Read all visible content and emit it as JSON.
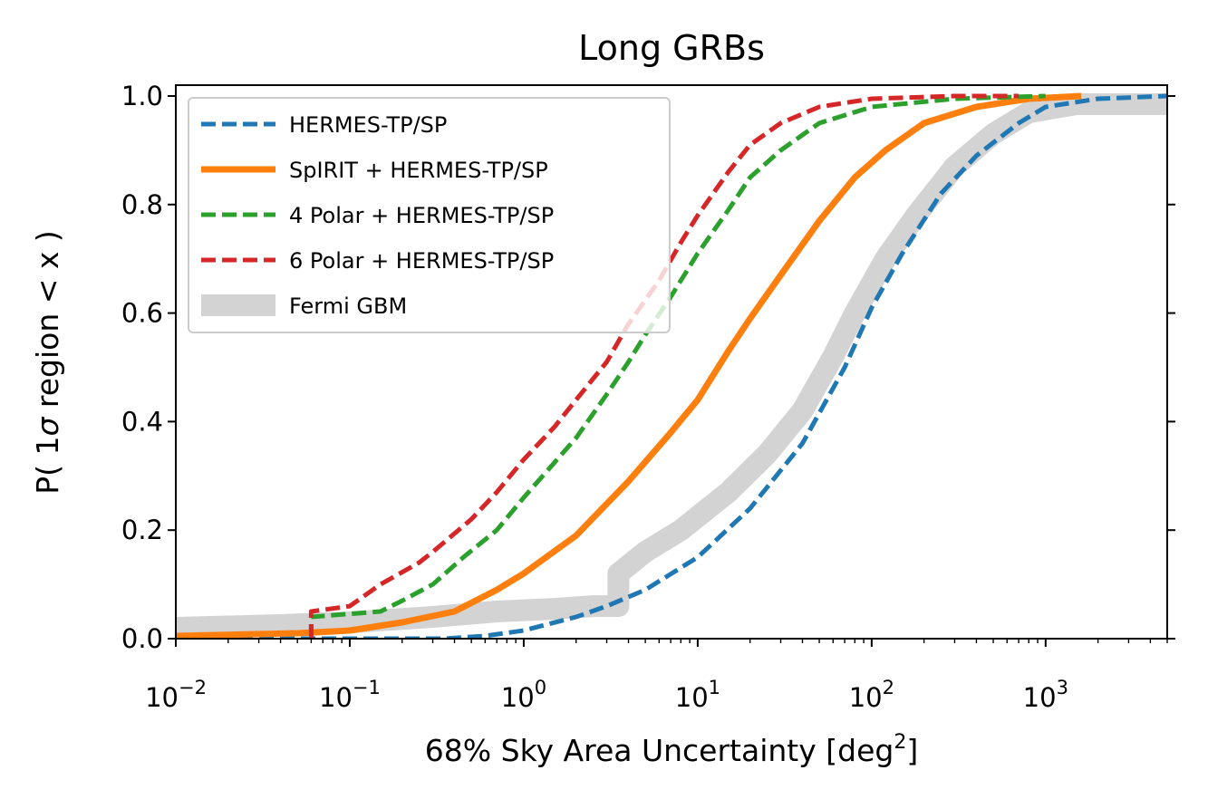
{
  "chart_data": {
    "type": "line",
    "title": "Long GRBs",
    "xlabel": {
      "main": "68% Sky Area Uncertainty [deg",
      "sup": "2",
      "close": "]"
    },
    "ylabel": {
      "pre": "P( 1",
      "sigma": "σ",
      "post": " region < x )"
    },
    "xscale": "log",
    "xlim": [
      0.01,
      5000
    ],
    "ylim": [
      0.0,
      1.02
    ],
    "x_ticks": [
      {
        "base": "10",
        "exp": "−2",
        "value": 0.01
      },
      {
        "base": "10",
        "exp": "−1",
        "value": 0.1
      },
      {
        "base": "10",
        "exp": "0",
        "value": 1
      },
      {
        "base": "10",
        "exp": "1",
        "value": 10
      },
      {
        "base": "10",
        "exp": "2",
        "value": 100
      },
      {
        "base": "10",
        "exp": "3",
        "value": 1000
      }
    ],
    "y_ticks": [
      "0.0",
      "0.2",
      "0.4",
      "0.6",
      "0.8",
      "1.0"
    ],
    "legend_position": "upper-left",
    "series": [
      {
        "name": "Fermi GBM",
        "color": "#d3d3d3",
        "style": "solid-thick",
        "points": [
          [
            0.01,
            0.02
          ],
          [
            0.04,
            0.025
          ],
          [
            0.1,
            0.03
          ],
          [
            0.3,
            0.04
          ],
          [
            0.7,
            0.05
          ],
          [
            1.5,
            0.055
          ],
          [
            2.5,
            0.06
          ],
          [
            3.5,
            0.06
          ],
          [
            3.5,
            0.12
          ],
          [
            5,
            0.16
          ],
          [
            8,
            0.2
          ],
          [
            15,
            0.27
          ],
          [
            25,
            0.34
          ],
          [
            40,
            0.42
          ],
          [
            60,
            0.52
          ],
          [
            80,
            0.6
          ],
          [
            120,
            0.7
          ],
          [
            180,
            0.78
          ],
          [
            300,
            0.87
          ],
          [
            500,
            0.93
          ],
          [
            800,
            0.97
          ],
          [
            1500,
            0.985
          ],
          [
            5000,
            0.985
          ]
        ]
      },
      {
        "name": "HERMES-TP/SP",
        "color": "#1f77b4",
        "style": "dashed",
        "points": [
          [
            0.01,
            0.0
          ],
          [
            0.35,
            0.0
          ],
          [
            0.6,
            0.005
          ],
          [
            1.0,
            0.015
          ],
          [
            2.0,
            0.04
          ],
          [
            3.0,
            0.06
          ],
          [
            5.0,
            0.09
          ],
          [
            10.0,
            0.15
          ],
          [
            20.0,
            0.24
          ],
          [
            40.0,
            0.36
          ],
          [
            70.0,
            0.5
          ],
          [
            100.0,
            0.61
          ],
          [
            150.0,
            0.71
          ],
          [
            250.0,
            0.82
          ],
          [
            400.0,
            0.89
          ],
          [
            700.0,
            0.95
          ],
          [
            1000.0,
            0.98
          ],
          [
            2000.0,
            0.995
          ],
          [
            5000.0,
            1.0
          ]
        ]
      },
      {
        "name": "SpIRIT  + HERMES-TP/SP",
        "color": "#ff7f0e",
        "style": "solid",
        "points": [
          [
            0.01,
            0.005
          ],
          [
            0.05,
            0.01
          ],
          [
            0.1,
            0.015
          ],
          [
            0.2,
            0.03
          ],
          [
            0.4,
            0.05
          ],
          [
            0.7,
            0.09
          ],
          [
            1.0,
            0.12
          ],
          [
            2.0,
            0.19
          ],
          [
            4.0,
            0.29
          ],
          [
            7.0,
            0.38
          ],
          [
            10.0,
            0.44
          ],
          [
            15.0,
            0.53
          ],
          [
            20.0,
            0.59
          ],
          [
            30.0,
            0.67
          ],
          [
            50.0,
            0.77
          ],
          [
            80.0,
            0.85
          ],
          [
            120.0,
            0.9
          ],
          [
            200.0,
            0.95
          ],
          [
            400.0,
            0.98
          ],
          [
            800.0,
            0.995
          ],
          [
            1600.0,
            1.0
          ]
        ]
      },
      {
        "name": "4 Polar + HERMES-TP/SP",
        "color": "#2ca02c",
        "style": "dashed",
        "points": [
          [
            0.06,
            0.0
          ],
          [
            0.06,
            0.04
          ],
          [
            0.15,
            0.05
          ],
          [
            0.2,
            0.07
          ],
          [
            0.3,
            0.1
          ],
          [
            0.45,
            0.15
          ],
          [
            0.7,
            0.2
          ],
          [
            1.0,
            0.26
          ],
          [
            2.0,
            0.37
          ],
          [
            3.0,
            0.45
          ],
          [
            4.0,
            0.51
          ],
          [
            5.0,
            0.56
          ],
          [
            7.0,
            0.63
          ],
          [
            10.0,
            0.71
          ],
          [
            15.0,
            0.79
          ],
          [
            20.0,
            0.85
          ],
          [
            30.0,
            0.9
          ],
          [
            50.0,
            0.95
          ],
          [
            100.0,
            0.98
          ],
          [
            300.0,
            0.995
          ],
          [
            1000.0,
            1.0
          ]
        ]
      },
      {
        "name": "6 Polar + HERMES-TP/SP",
        "color": "#d62728",
        "style": "dashed",
        "points": [
          [
            0.06,
            0.0
          ],
          [
            0.06,
            0.05
          ],
          [
            0.1,
            0.06
          ],
          [
            0.15,
            0.1
          ],
          [
            0.25,
            0.14
          ],
          [
            0.3,
            0.16
          ],
          [
            0.5,
            0.22
          ],
          [
            0.7,
            0.27
          ],
          [
            1.0,
            0.33
          ],
          [
            1.5,
            0.39
          ],
          [
            2.0,
            0.44
          ],
          [
            3.0,
            0.51
          ],
          [
            4.0,
            0.58
          ],
          [
            6.0,
            0.66
          ],
          [
            8.0,
            0.73
          ],
          [
            10.0,
            0.78
          ],
          [
            15.0,
            0.86
          ],
          [
            20.0,
            0.91
          ],
          [
            30.0,
            0.95
          ],
          [
            50.0,
            0.98
          ],
          [
            100.0,
            0.995
          ],
          [
            300.0,
            1.0
          ],
          [
            700.0,
            1.0
          ]
        ]
      }
    ],
    "legend": [
      {
        "name": "HERMES-TP/SP",
        "color": "#1f77b4",
        "style": "dashed"
      },
      {
        "name": "SpIRIT  + HERMES-TP/SP",
        "color": "#ff7f0e",
        "style": "solid"
      },
      {
        "name": "4 Polar + HERMES-TP/SP",
        "color": "#2ca02c",
        "style": "dashed"
      },
      {
        "name": "6 Polar + HERMES-TP/SP",
        "color": "#d62728",
        "style": "dashed"
      },
      {
        "name": "Fermi GBM",
        "color": "#d3d3d3",
        "style": "solid-thick"
      }
    ]
  }
}
